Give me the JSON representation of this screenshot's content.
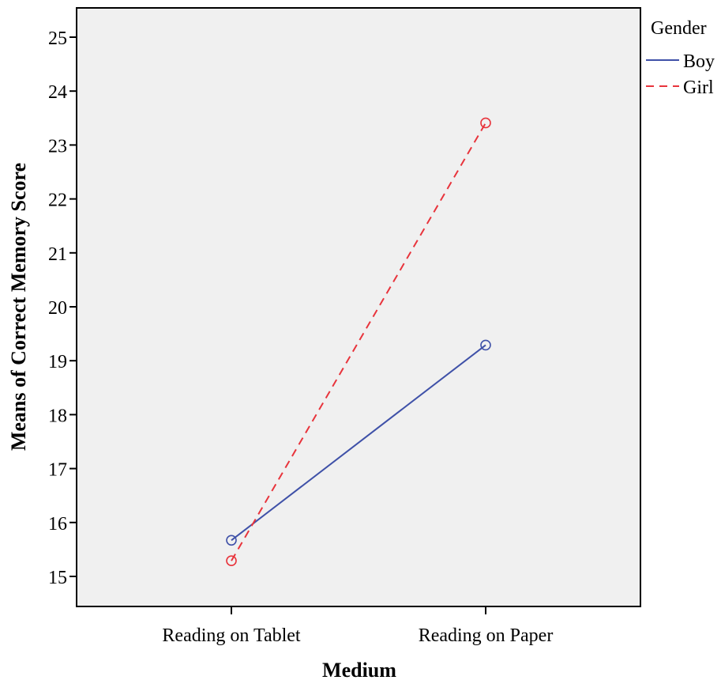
{
  "chart_data": {
    "type": "line",
    "title": "",
    "xlabel": "Medium",
    "ylabel": "Means of Correct Memory Score",
    "categories": [
      "Reading on Tablet",
      "Reading on Paper"
    ],
    "ylim": [
      14.4,
      25.5
    ],
    "yticks": [
      15,
      16,
      17,
      18,
      19,
      20,
      21,
      22,
      23,
      24,
      25
    ],
    "grid": false,
    "legend": {
      "title": "Gender",
      "placement": "right"
    },
    "series": [
      {
        "name": "Boy",
        "values": [
          15.67,
          19.29
        ],
        "color": "#3f51a8",
        "dash": "solid",
        "marker": "circle"
      },
      {
        "name": "Girl",
        "values": [
          15.29,
          23.41
        ],
        "color": "#e8343c",
        "dash": "dashed",
        "marker": "circle"
      }
    ],
    "plot_background": "#f0f0f0"
  }
}
